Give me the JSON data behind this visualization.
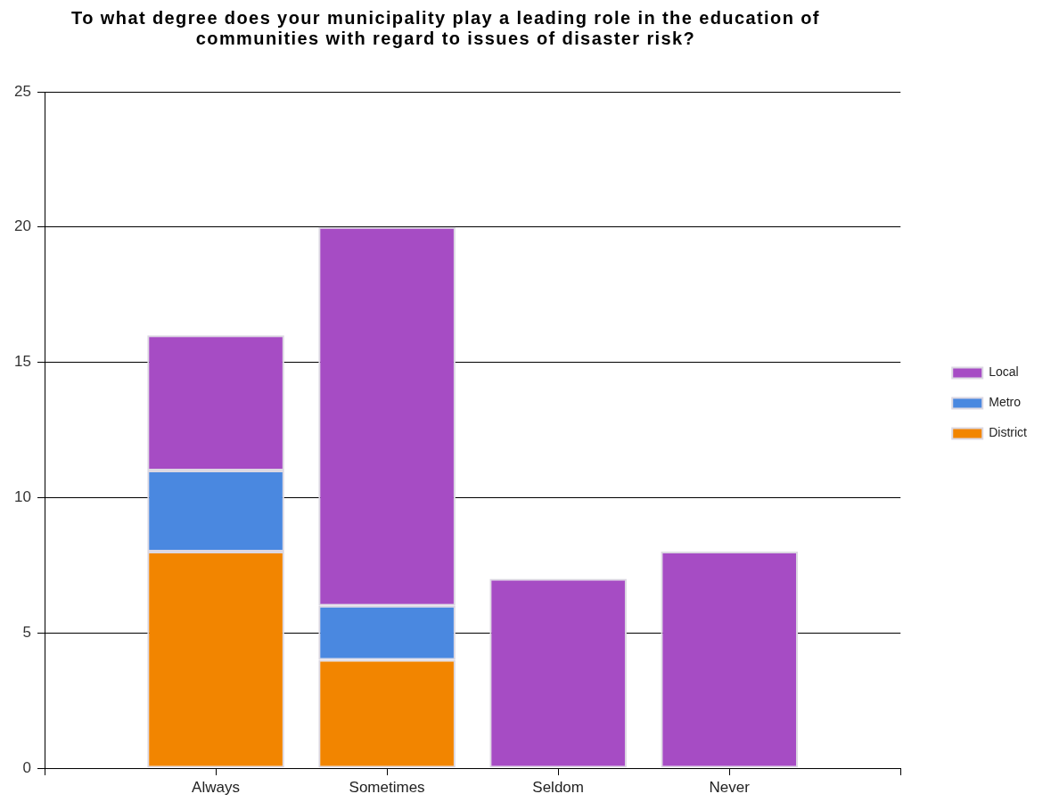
{
  "chart_data": {
    "type": "bar",
    "title": "To what degree does your municipality play a leading role in the education of communities with regard to issues of disaster risk?",
    "categories": [
      "Always",
      "Sometimes",
      "Seldom",
      "Never"
    ],
    "series": [
      {
        "name": "District",
        "color": "#f28500",
        "values": [
          8,
          4,
          0,
          0
        ]
      },
      {
        "name": "Metro",
        "color": "#4a88e0",
        "values": [
          3,
          2,
          0,
          0
        ]
      },
      {
        "name": "Local",
        "color": "#a64cc4",
        "values": [
          5,
          14,
          7,
          8
        ]
      }
    ],
    "stacked": true,
    "ylim": [
      0,
      25
    ],
    "yticks": [
      0,
      5,
      10,
      15,
      20,
      25
    ],
    "grid": "y",
    "legend": "right"
  }
}
